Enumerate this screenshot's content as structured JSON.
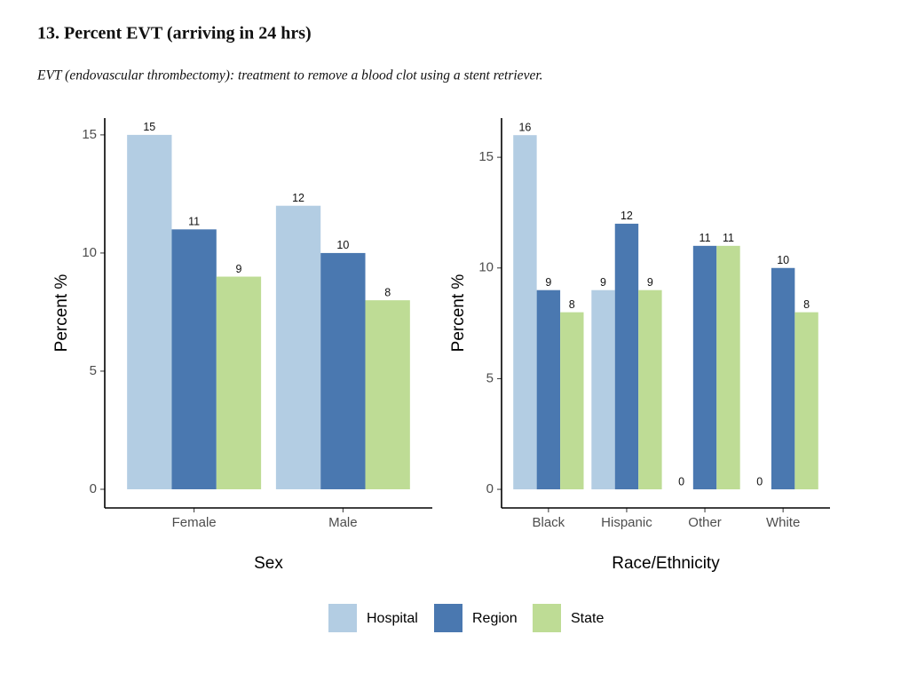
{
  "header": {
    "title": "13. Percent EVT (arriving in 24 hrs)",
    "subtitle": "EVT (endovascular thrombectomy): treatment to remove a blood clot using a stent retriever."
  },
  "chart_data": [
    {
      "type": "bar",
      "xlabel": "Sex",
      "ylabel": "Percent %",
      "categories": [
        "Female",
        "Male"
      ],
      "series": [
        {
          "name": "Hospital",
          "color": "#b3cde3",
          "values": [
            15,
            12
          ]
        },
        {
          "name": "Region",
          "color": "#4a78b0",
          "values": [
            11,
            10
          ]
        },
        {
          "name": "State",
          "color": "#bedc95",
          "values": [
            9,
            8
          ]
        }
      ],
      "ylim": [
        -0.79,
        15.71
      ],
      "yticks": [
        0,
        5,
        10,
        15
      ]
    },
    {
      "type": "bar",
      "xlabel": "Race/Ethnicity",
      "ylabel": "Percent %",
      "categories": [
        "Black",
        "Hispanic",
        "Other",
        "White"
      ],
      "series": [
        {
          "color": "#b3cde3",
          "values": [
            16,
            9,
            0,
            0
          ]
        },
        {
          "color": "#4a78b0",
          "values": [
            9,
            12,
            11,
            10
          ]
        },
        {
          "color": "#bedc95",
          "values": [
            8,
            9,
            11,
            8
          ]
        }
      ],
      "ylim": [
        -0.84,
        16.77
      ],
      "yticks": [
        0,
        5,
        10,
        15
      ]
    }
  ]
}
